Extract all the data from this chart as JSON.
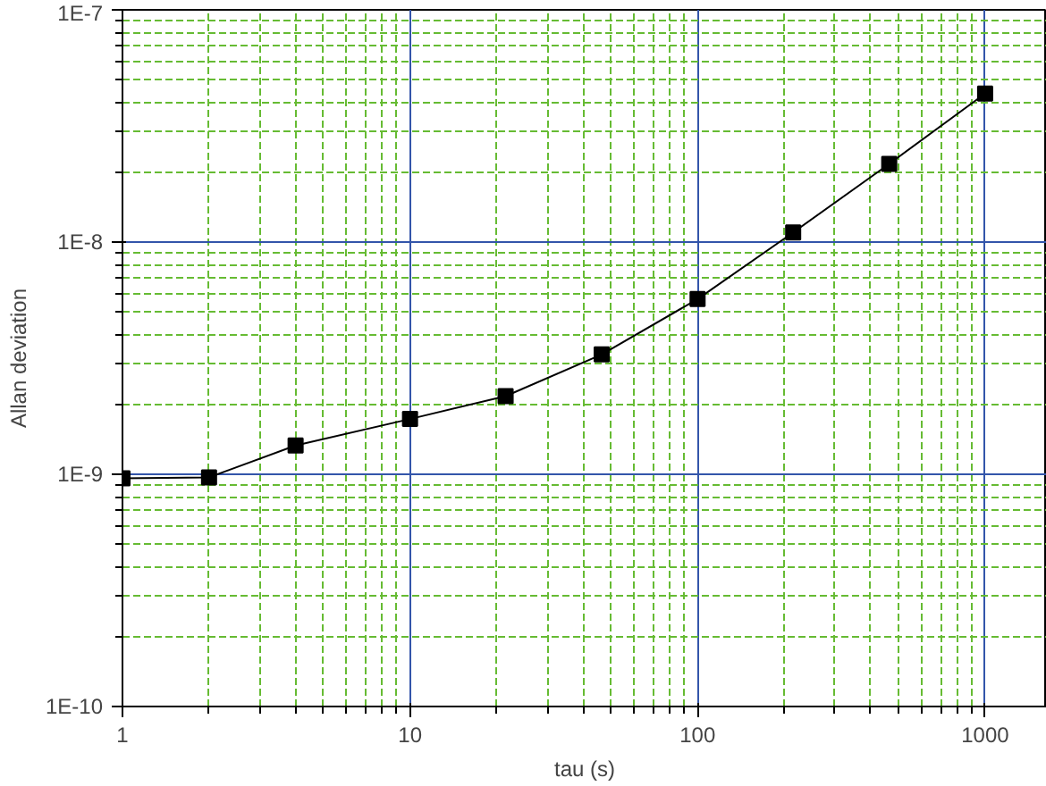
{
  "chart_data": {
    "type": "line",
    "xlabel": "tau (s)",
    "ylabel": "Allan deviation",
    "x": [
      1,
      2,
      4,
      10,
      21.5,
      46.4,
      100,
      215,
      464,
      1000
    ],
    "series": [
      {
        "color": "#000000",
        "values": [
          9.6e-10,
          9.7e-10,
          1.33e-09,
          1.73e-09,
          2.17e-09,
          3.28e-09,
          5.68e-09,
          1.1e-08,
          2.17e-08,
          4.36e-08
        ]
      }
    ],
    "log": "xy",
    "xlim": [
      1,
      1640
    ],
    "ylim": [
      1e-10,
      1e-07
    ],
    "xticks": [
      1,
      10,
      100,
      1000,
      {
        "value": 2,
        "label": null
      },
      {
        "value": 3,
        "label": null
      },
      {
        "value": 4,
        "label": null
      },
      {
        "value": 5,
        "label": null
      },
      {
        "value": 6,
        "label": null
      },
      {
        "value": 7,
        "label": null
      },
      {
        "value": 8,
        "label": null
      },
      {
        "value": 9,
        "label": null
      },
      {
        "value": 20,
        "label": null
      },
      {
        "value": 30,
        "label": null
      },
      {
        "value": 40,
        "label": null
      },
      {
        "value": 50,
        "label": null
      },
      {
        "value": 60,
        "label": null
      },
      {
        "value": 70,
        "label": null
      },
      {
        "value": 80,
        "label": null
      },
      {
        "value": 90,
        "label": null
      },
      {
        "value": 200,
        "label": null
      },
      {
        "value": 300,
        "label": null
      },
      {
        "value": 400,
        "label": null
      },
      {
        "value": 500,
        "label": null
      },
      {
        "value": 600,
        "label": null
      },
      {
        "value": 700,
        "label": null
      },
      {
        "value": 800,
        "label": null
      },
      {
        "value": 900,
        "label": null
      }
    ],
    "yticks": [
      {
        "value": 1e-10,
        "label": "1E-10"
      },
      {
        "value": 1e-09,
        "label": "1E-9"
      },
      {
        "value": 1e-08,
        "label": "1E-8"
      },
      {
        "value": 1e-07,
        "label": "1E-7"
      },
      {
        "value": 2e-10,
        "label": null
      },
      {
        "value": 3e-10,
        "label": null
      },
      {
        "value": 4e-10,
        "label": null
      },
      {
        "value": 5e-10,
        "label": null
      },
      {
        "value": 6e-10,
        "label": null
      },
      {
        "value": 7e-10,
        "label": null
      },
      {
        "value": 8e-10,
        "label": null
      },
      {
        "value": 9e-10,
        "label": null
      },
      {
        "value": 2e-09,
        "label": null
      },
      {
        "value": 3e-09,
        "label": null
      },
      {
        "value": 4e-09,
        "label": null
      },
      {
        "value": 5e-09,
        "label": null
      },
      {
        "value": 6e-09,
        "label": null
      },
      {
        "value": 7e-09,
        "label": null
      },
      {
        "value": 8e-09,
        "label": null
      },
      {
        "value": 9e-09,
        "label": null
      },
      {
        "value": 2e-08,
        "label": null
      },
      {
        "value": 3e-08,
        "label": null
      },
      {
        "value": 4e-08,
        "label": null
      },
      {
        "value": 5e-08,
        "label": null
      },
      {
        "value": 6e-08,
        "label": null
      },
      {
        "value": 7e-08,
        "label": null
      },
      {
        "value": 8e-08,
        "label": null
      },
      {
        "value": 9e-08,
        "label": null
      }
    ],
    "grid": true,
    "marker": "square",
    "line_style": "solid"
  }
}
